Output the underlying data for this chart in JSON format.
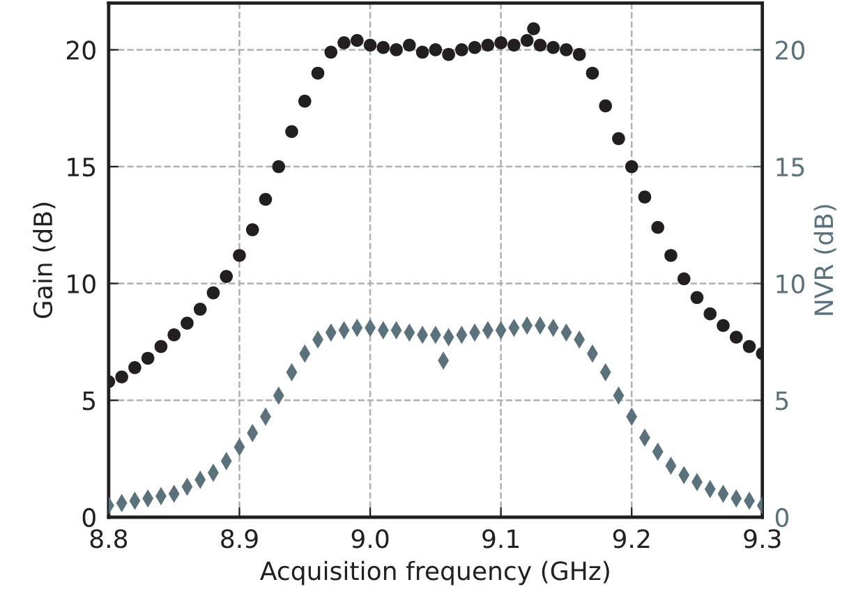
{
  "chart_data": {
    "type": "scatter",
    "xlabel": "Acquisition frequency (GHz)",
    "ylabel": "Gain (dB)",
    "y2label": "NVR (dB)",
    "xlim": [
      8.8,
      9.3
    ],
    "xticks": [
      {
        "value": 8.8,
        "label": "8.8"
      },
      {
        "value": 8.9,
        "label": "8.9"
      },
      {
        "value": 9.0,
        "label": "9.0"
      },
      {
        "value": 9.1,
        "label": "9.1"
      },
      {
        "value": 9.2,
        "label": "9.2"
      },
      {
        "value": 9.3,
        "label": "9.3"
      }
    ],
    "ylim": [
      0,
      22
    ],
    "yticks": [
      0,
      5,
      10,
      15,
      20
    ],
    "y2lim": [
      0,
      22
    ],
    "y2ticks": [
      0,
      5,
      10,
      15,
      20
    ],
    "grid": true,
    "series": [
      {
        "color": "#231f20",
        "marker": "circle",
        "x": [
          8.8,
          8.81,
          8.82,
          8.83,
          8.84,
          8.85,
          8.86,
          8.87,
          8.88,
          8.89,
          8.9,
          8.91,
          8.92,
          8.93,
          8.94,
          8.95,
          8.96,
          8.97,
          8.98,
          8.99,
          9.0,
          9.01,
          9.02,
          9.03,
          9.04,
          9.05,
          9.06,
          9.07,
          9.08,
          9.09,
          9.1,
          9.11,
          9.12,
          9.125,
          9.13,
          9.14,
          9.15,
          9.16,
          9.17,
          9.18,
          9.19,
          9.2,
          9.21,
          9.22,
          9.23,
          9.24,
          9.25,
          9.26,
          9.27,
          9.28,
          9.29,
          9.3
        ],
        "values": [
          5.8,
          6.0,
          6.4,
          6.8,
          7.3,
          7.8,
          8.3,
          8.9,
          9.6,
          10.3,
          11.2,
          12.3,
          13.6,
          15.0,
          16.5,
          17.8,
          19.0,
          19.9,
          20.3,
          20.4,
          20.2,
          20.1,
          20.0,
          20.2,
          19.9,
          20.0,
          19.8,
          20.0,
          20.1,
          20.2,
          20.3,
          20.2,
          20.4,
          20.9,
          20.2,
          20.1,
          20.0,
          19.8,
          19.0,
          17.6,
          16.2,
          15.0,
          13.7,
          12.4,
          11.2,
          10.2,
          9.4,
          8.7,
          8.2,
          7.7,
          7.3,
          7.0
        ]
      },
      {
        "color": "#5b717c",
        "marker": "diamond",
        "axis": "y2",
        "x": [
          8.8,
          8.81,
          8.82,
          8.83,
          8.84,
          8.85,
          8.86,
          8.87,
          8.88,
          8.89,
          8.9,
          8.91,
          8.92,
          8.93,
          8.94,
          8.95,
          8.96,
          8.97,
          8.98,
          8.99,
          9.0,
          9.01,
          9.02,
          9.03,
          9.04,
          9.05,
          9.056,
          9.06,
          9.07,
          9.08,
          9.09,
          9.1,
          9.11,
          9.12,
          9.13,
          9.14,
          9.15,
          9.16,
          9.17,
          9.18,
          9.19,
          9.2,
          9.21,
          9.22,
          9.23,
          9.24,
          9.25,
          9.26,
          9.27,
          9.28,
          9.29,
          9.3
        ],
        "values": [
          0.5,
          0.6,
          0.7,
          0.8,
          0.9,
          1.0,
          1.3,
          1.6,
          1.9,
          2.4,
          3.0,
          3.6,
          4.3,
          5.2,
          6.2,
          7.0,
          7.6,
          7.9,
          8.0,
          8.1,
          8.1,
          8.0,
          8.0,
          7.9,
          7.8,
          7.8,
          6.7,
          7.7,
          7.8,
          7.9,
          8.0,
          8.0,
          8.1,
          8.2,
          8.2,
          8.1,
          7.9,
          7.6,
          7.0,
          6.2,
          5.2,
          4.3,
          3.4,
          2.8,
          2.2,
          1.8,
          1.5,
          1.2,
          1.0,
          0.8,
          0.7,
          0.5
        ]
      }
    ]
  }
}
